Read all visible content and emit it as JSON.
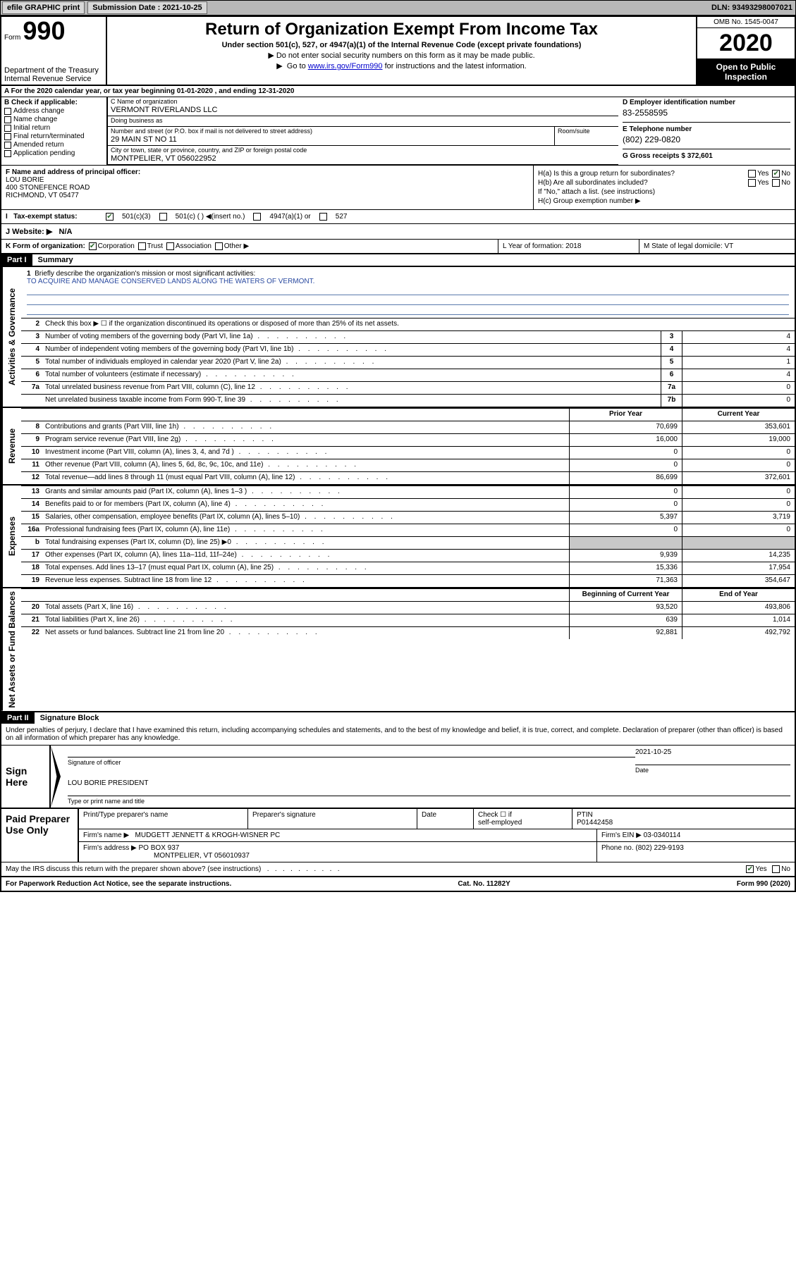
{
  "top_bar": {
    "efile_label": "efile GRAPHIC print",
    "submission_label": "Submission Date : 2021-10-25",
    "dln_label": "DLN: 93493298007021"
  },
  "header": {
    "form_word": "Form",
    "form_no": "990",
    "dept1": "Department of the Treasury",
    "dept2": "Internal Revenue Service",
    "title": "Return of Organization Exempt From Income Tax",
    "sub": "Under section 501(c), 527, or 4947(a)(1) of the Internal Revenue Code (except private foundations)",
    "tri1": "Do not enter social security numbers on this form as it may be made public.",
    "tri2_pre": "Go to ",
    "tri2_link": "www.irs.gov/Form990",
    "tri2_post": " for instructions and the latest information.",
    "omb": "OMB No. 1545-0047",
    "year": "2020",
    "inspect1": "Open to Public",
    "inspect2": "Inspection"
  },
  "row_a": "A  For the 2020 calendar year, or tax year beginning 01-01-2020    , and ending 12-31-2020",
  "col_b": {
    "header": "B Check if applicable:",
    "items": [
      "Address change",
      "Name change",
      "Initial return",
      "Final return/terminated",
      "Amended return",
      "Application pending"
    ]
  },
  "org": {
    "name_label": "C Name of organization",
    "name": "VERMONT RIVERLANDS LLC",
    "dba_label": "Doing business as",
    "dba": "",
    "addr_label": "Number and street (or P.O. box if mail is not delivered to street address)",
    "addr": "29 MAIN ST NO 11",
    "room_label": "Room/suite",
    "city_label": "City or town, state or province, country, and ZIP or foreign postal code",
    "city": "MONTPELIER, VT  056022952"
  },
  "col_d": {
    "ein_label": "D Employer identification number",
    "ein": "83-2558595",
    "tel_label": "E Telephone number",
    "tel": "(802) 229-0820",
    "gross_label": "G Gross receipts $ 372,601"
  },
  "fh": {
    "f_label": "F  Name and address of principal officer:",
    "f_name": "LOU BORIE",
    "f_addr1": "400 STONEFENCE ROAD",
    "f_addr2": "RICHMOND, VT  05477",
    "ha_label": "H(a)  Is this a group return for subordinates?",
    "hb_label": "H(b)  Are all subordinates included?",
    "hb_note": "If \"No,\" attach a list. (see instructions)",
    "hc_label": "H(c)  Group exemption number ▶",
    "yes": "Yes",
    "no": "No"
  },
  "tax": {
    "label": "Tax-exempt status:",
    "o1": "501(c)(3)",
    "o2": "501(c) (   ) ◀(insert no.)",
    "o3": "4947(a)(1) or",
    "o4": "527"
  },
  "website": {
    "label": "J  Website: ▶",
    "val": "N/A"
  },
  "klm": {
    "k_label": "K Form of organization:",
    "k_opts": [
      "Corporation",
      "Trust",
      "Association",
      "Other ▶"
    ],
    "l_label": "L Year of formation: 2018",
    "m_label": "M State of legal domicile: VT"
  },
  "part1": {
    "part": "Part I",
    "title": "Summary",
    "mission_num": "1",
    "mission_label": "Briefly describe the organization's mission or most significant activities:",
    "mission_text": "TO ACQUIRE AND MANAGE CONSERVED LANDS ALONG THE WATERS OF VERMONT.",
    "l2_num": "2",
    "l2": "Check this box ▶ ☐  if the organization discontinued its operations or disposed of more than 25% of its net assets.",
    "rows_gov": [
      {
        "n": "3",
        "d": "Number of voting members of the governing body (Part VI, line 1a)",
        "box": "3",
        "v": "4"
      },
      {
        "n": "4",
        "d": "Number of independent voting members of the governing body (Part VI, line 1b)",
        "box": "4",
        "v": "4"
      },
      {
        "n": "5",
        "d": "Total number of individuals employed in calendar year 2020 (Part V, line 2a)",
        "box": "5",
        "v": "1"
      },
      {
        "n": "6",
        "d": "Total number of volunteers (estimate if necessary)",
        "box": "6",
        "v": "4"
      },
      {
        "n": "7a",
        "d": "Total unrelated business revenue from Part VIII, column (C), line 12",
        "box": "7a",
        "v": "0"
      },
      {
        "n": "",
        "d": "Net unrelated business taxable income from Form 990-T, line 39",
        "box": "7b",
        "v": "0"
      }
    ],
    "py_hdr": "Prior Year",
    "cy_hdr": "Current Year",
    "rows_rev": [
      {
        "n": "8",
        "d": "Contributions and grants (Part VIII, line 1h)",
        "py": "70,699",
        "cy": "353,601"
      },
      {
        "n": "9",
        "d": "Program service revenue (Part VIII, line 2g)",
        "py": "16,000",
        "cy": "19,000"
      },
      {
        "n": "10",
        "d": "Investment income (Part VIII, column (A), lines 3, 4, and 7d )",
        "py": "0",
        "cy": "0"
      },
      {
        "n": "11",
        "d": "Other revenue (Part VIII, column (A), lines 5, 6d, 8c, 9c, 10c, and 11e)",
        "py": "0",
        "cy": "0"
      },
      {
        "n": "12",
        "d": "Total revenue—add lines 8 through 11 (must equal Part VIII, column (A), line 12)",
        "py": "86,699",
        "cy": "372,601"
      }
    ],
    "rows_exp": [
      {
        "n": "13",
        "d": "Grants and similar amounts paid (Part IX, column (A), lines 1–3 )",
        "py": "0",
        "cy": "0"
      },
      {
        "n": "14",
        "d": "Benefits paid to or for members (Part IX, column (A), line 4)",
        "py": "0",
        "cy": "0"
      },
      {
        "n": "15",
        "d": "Salaries, other compensation, employee benefits (Part IX, column (A), lines 5–10)",
        "py": "5,397",
        "cy": "3,719"
      },
      {
        "n": "16a",
        "d": "Professional fundraising fees (Part IX, column (A), line 11e)",
        "py": "0",
        "cy": "0"
      },
      {
        "n": "b",
        "d": "Total fundraising expenses (Part IX, column (D), line 25) ▶0",
        "py": "",
        "cy": "",
        "grey": true
      },
      {
        "n": "17",
        "d": "Other expenses (Part IX, column (A), lines 11a–11d, 11f–24e)",
        "py": "9,939",
        "cy": "14,235"
      },
      {
        "n": "18",
        "d": "Total expenses. Add lines 13–17 (must equal Part IX, column (A), line 25)",
        "py": "15,336",
        "cy": "17,954"
      },
      {
        "n": "19",
        "d": "Revenue less expenses. Subtract line 18 from line 12",
        "py": "71,363",
        "cy": "354,647"
      }
    ],
    "boy_hdr": "Beginning of Current Year",
    "eoy_hdr": "End of Year",
    "rows_na": [
      {
        "n": "20",
        "d": "Total assets (Part X, line 16)",
        "py": "93,520",
        "cy": "493,806"
      },
      {
        "n": "21",
        "d": "Total liabilities (Part X, line 26)",
        "py": "639",
        "cy": "1,014"
      },
      {
        "n": "22",
        "d": "Net assets or fund balances. Subtract line 21 from line 20",
        "py": "92,881",
        "cy": "492,792"
      }
    ],
    "vlabels": {
      "gov": "Activities & Governance",
      "rev": "Revenue",
      "exp": "Expenses",
      "na": "Net Assets or Fund Balances"
    }
  },
  "part2": {
    "part": "Part II",
    "title": "Signature Block",
    "decl": "Under penalties of perjury, I declare that I have examined this return, including accompanying schedules and statements, and to the best of my knowledge and belief, it is true, correct, and complete. Declaration of preparer (other than officer) is based on all information of which preparer has any knowledge.",
    "sign_here": "Sign Here",
    "sig_officer": "Signature of officer",
    "date_lbl": "Date",
    "date_val": "2021-10-25",
    "name_title": "LOU BORIE  PRESIDENT",
    "type_lbl": "Type or print name and title"
  },
  "paid": {
    "title": "Paid Preparer Use Only",
    "h1": "Print/Type preparer's name",
    "h2": "Preparer's signature",
    "h3": "Date",
    "h4a": "Check ☐ if",
    "h4b": "self-employed",
    "h5a": "PTIN",
    "h5b": "P01442458",
    "firm_lbl": "Firm's name     ▶",
    "firm": "MUDGETT JENNETT & KROGH-WISNER PC",
    "ein_lbl": "Firm's EIN ▶",
    "ein": "03-0340114",
    "addr_lbl": "Firm's address ▶",
    "addr1": "PO BOX 937",
    "addr2": "MONTPELIER, VT  056010937",
    "phone_lbl": "Phone no.",
    "phone": "(802) 229-9193"
  },
  "discuss": {
    "q": "May the IRS discuss this return with the preparer shown above? (see instructions)",
    "yes": "Yes",
    "no": "No"
  },
  "footer": {
    "left": "For Paperwork Reduction Act Notice, see the separate instructions.",
    "mid": "Cat. No. 11282Y",
    "right": "Form 990 (2020)"
  }
}
